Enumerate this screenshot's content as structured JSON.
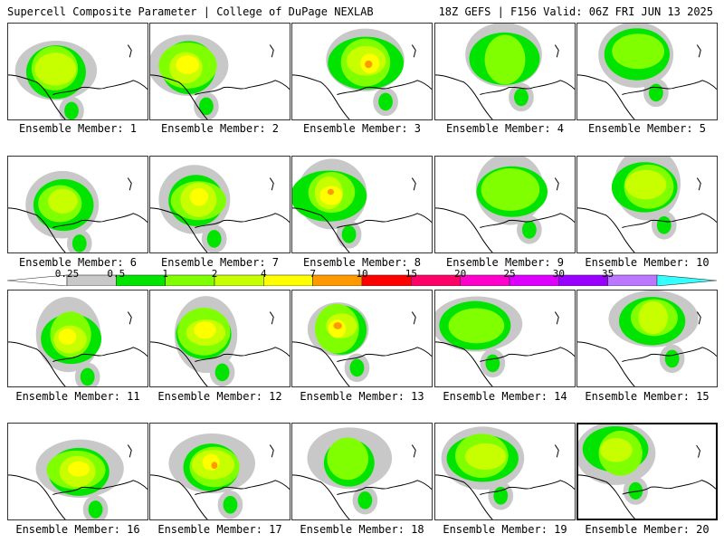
{
  "header": {
    "title": "Supercell Composite Parameter | College of DuPage NEXLAB",
    "run_info": "18Z GEFS | F156 Valid: 06Z FRI JUN 13 2025"
  },
  "colorbar": {
    "ticks": [
      "0.25",
      "0.5",
      "1",
      "2",
      "4",
      "7",
      "10",
      "15",
      "20",
      "25",
      "30",
      "35"
    ],
    "colors": [
      "#c8c8c8",
      "#00e400",
      "#80ff00",
      "#c8ff00",
      "#ffff00",
      "#ff9900",
      "#ff0000",
      "#ff0066",
      "#ff00cc",
      "#dd00ff",
      "#9900ff",
      "#bb77ff",
      "#33ffff"
    ]
  },
  "panels": [
    {
      "label": "Ensemble Member: 1"
    },
    {
      "label": "Ensemble Member: 2"
    },
    {
      "label": "Ensemble Member: 3"
    },
    {
      "label": "Ensemble Member: 4"
    },
    {
      "label": "Ensemble Member: 5"
    },
    {
      "label": "Ensemble Member: 6"
    },
    {
      "label": "Ensemble Member: 7"
    },
    {
      "label": "Ensemble Member: 8"
    },
    {
      "label": "Ensemble Member: 9"
    },
    {
      "label": "Ensemble Member: 10"
    },
    {
      "label": "Ensemble Member: 11"
    },
    {
      "label": "Ensemble Member: 12"
    },
    {
      "label": "Ensemble Member: 13"
    },
    {
      "label": "Ensemble Member: 14"
    },
    {
      "label": "Ensemble Member: 15"
    },
    {
      "label": "Ensemble Member: 16"
    },
    {
      "label": "Ensemble Member: 17"
    },
    {
      "label": "Ensemble Member: 18"
    },
    {
      "label": "Ensemble Member: 19"
    },
    {
      "label": "Ensemble Member: 20"
    }
  ],
  "selected_member": "Ensemble Member: 20"
}
